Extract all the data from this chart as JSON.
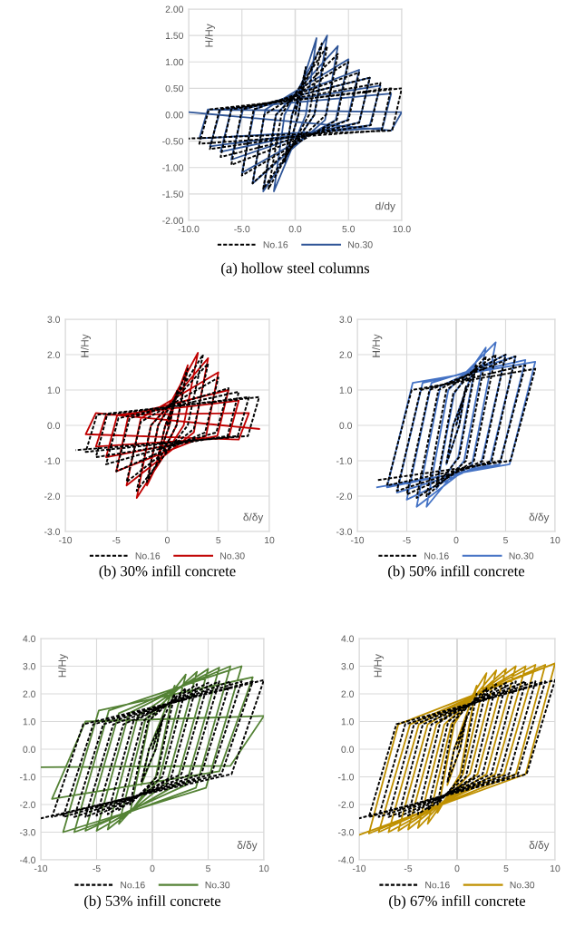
{
  "chart_data": [
    {
      "type": "line",
      "title": "(a) hollow steel columns",
      "xlabel": "d/dy",
      "ylabel": "H/Hy",
      "xlim": [
        -10,
        10
      ],
      "ylim": [
        -2,
        2
      ],
      "xticks": [
        {
          "value": -10,
          "label": "-10.0"
        },
        {
          "value": -5,
          "label": "-5.0"
        },
        {
          "value": 0,
          "label": "0.0"
        },
        {
          "value": 5,
          "label": "5.0"
        },
        {
          "value": 10,
          "label": "10.0"
        }
      ],
      "yticks": [
        {
          "value": -2,
          "label": "-2.00"
        },
        {
          "value": -1.5,
          "label": "-1.50"
        },
        {
          "value": -1,
          "label": "-1.00"
        },
        {
          "value": -0.5,
          "label": "-0.50"
        },
        {
          "value": 0,
          "label": "0.00"
        },
        {
          "value": 0.5,
          "label": "0.50"
        },
        {
          "value": 1,
          "label": "1.00"
        },
        {
          "value": 1.5,
          "label": "1.50"
        },
        {
          "value": 2,
          "label": "2.00"
        }
      ],
      "grid": true,
      "legend": "bottom",
      "marker": "none",
      "series": [
        {
          "name": "No.16",
          "color": "#000000",
          "line_style": "dashed",
          "x": [
            0,
            1,
            0.3,
            -1,
            -0.3,
            2.5,
            1.3,
            -2.5,
            -1.3,
            3,
            1.8,
            -3,
            -1.8,
            4,
            2.9,
            -4,
            -2.9,
            5,
            3.9,
            -5,
            -3.9,
            6,
            5,
            -6,
            -5,
            7,
            6,
            -7,
            -6,
            8,
            7.1,
            -8,
            -7.1,
            9,
            8.1,
            -9,
            -8.1,
            10,
            9.1,
            -10
          ],
          "values": [
            0,
            0.9,
            0,
            -0.9,
            0,
            1.35,
            0,
            -1.4,
            0,
            1.3,
            0,
            -1.4,
            0,
            1.15,
            0,
            -1.3,
            0,
            1.0,
            -0.1,
            -1.15,
            0.1,
            0.8,
            -0.1,
            -0.95,
            0.1,
            0.7,
            -0.15,
            -0.8,
            0.1,
            0.6,
            -0.2,
            -0.65,
            0.1,
            0.5,
            -0.3,
            -0.55,
            0.1,
            0.5,
            -0.3,
            -0.45
          ]
        },
        {
          "name": "No.30",
          "color": "#2f5597",
          "line_style": "solid",
          "x": [
            0,
            1,
            0.3,
            -1,
            -0.3,
            2,
            1,
            -2,
            -1,
            3,
            1.8,
            -3,
            -1.8,
            4,
            2.8,
            -4,
            -2.8,
            5,
            3.8,
            -5,
            -3.8,
            6,
            4.9,
            -6,
            -4.9,
            7,
            6,
            -7,
            -6,
            8,
            7,
            -8,
            -7,
            9,
            8.2,
            -9,
            -8.2,
            10,
            9,
            -10
          ],
          "values": [
            0,
            0.9,
            0,
            -0.9,
            0,
            1.45,
            0,
            -1.45,
            0,
            1.5,
            0,
            -1.45,
            0,
            1.3,
            -0.1,
            -1.3,
            0.1,
            1.05,
            -0.1,
            -1.1,
            0.1,
            0.85,
            -0.1,
            -0.85,
            0.1,
            0.7,
            -0.15,
            -0.7,
            0.1,
            0.55,
            -0.2,
            -0.6,
            0.1,
            0.4,
            -0.25,
            -0.45,
            0.1,
            0.05,
            -0.3,
            0.05
          ]
        }
      ]
    },
    {
      "type": "line",
      "title": "(b) 30% infill concrete",
      "xlabel": "δ/δy",
      "ylabel": "H/Hy",
      "xlim": [
        -10,
        10
      ],
      "ylim": [
        -3,
        3
      ],
      "xticks": [
        -10,
        -5,
        0,
        5,
        10
      ],
      "yticks": [
        {
          "value": -3,
          "label": "-3.0"
        },
        {
          "value": -2,
          "label": "-2.0"
        },
        {
          "value": -1,
          "label": "-1.0"
        },
        {
          "value": 0,
          "label": "0.0"
        },
        {
          "value": 1,
          "label": "1.0"
        },
        {
          "value": 2,
          "label": "2.0"
        },
        {
          "value": 3,
          "label": "3.0"
        }
      ],
      "grid": true,
      "legend": "bottom",
      "marker": "none",
      "series": [
        {
          "name": "No.16",
          "color": "#000000",
          "line_style": "dashed",
          "x": [
            0,
            1,
            0.2,
            -1,
            -0.2,
            2,
            0.9,
            -2,
            -0.9,
            3.5,
            2,
            -3,
            -1.6,
            4,
            2.6,
            -4,
            -2.6,
            5,
            3.7,
            -5,
            -3.7,
            6,
            4.8,
            -6,
            -4.8,
            7,
            5.9,
            -7,
            -5.9,
            8,
            6.9,
            -8,
            -6.9,
            9,
            7.9,
            -9
          ],
          "values": [
            0,
            1.0,
            0,
            -1.0,
            0,
            1.6,
            0,
            -1.6,
            0,
            2.0,
            0,
            -1.85,
            0,
            1.75,
            -0.1,
            -1.6,
            0.1,
            1.35,
            -0.2,
            -1.3,
            0.2,
            1.05,
            -0.2,
            -1.1,
            0.2,
            0.95,
            -0.3,
            -0.9,
            0.3,
            0.8,
            -0.3,
            -0.75,
            0.3,
            0.8,
            -0.3,
            -0.7
          ]
        },
        {
          "name": "No.30",
          "color": "#c00000",
          "line_style": "solid",
          "x": [
            0,
            1,
            0.2,
            -1,
            -0.2,
            2,
            0.9,
            -2,
            -0.9,
            3,
            1.6,
            -3,
            -1.6,
            4,
            2.6,
            -4,
            -2.6,
            5,
            3.8,
            -5,
            -3.8,
            6,
            4.9,
            -6,
            -4.9,
            7,
            6,
            -7,
            -6,
            8,
            7,
            -8,
            -7,
            9
          ],
          "values": [
            0,
            1.0,
            0,
            -1.0,
            0,
            1.7,
            0,
            -1.7,
            0,
            2.05,
            0,
            -2.05,
            0,
            1.9,
            -0.2,
            -1.7,
            0.2,
            1.5,
            -0.3,
            -1.3,
            0.3,
            1.0,
            -0.3,
            -0.9,
            0.3,
            0.7,
            -0.35,
            -0.6,
            0.3,
            0.35,
            -0.4,
            -0.25,
            0.35,
            -0.1
          ]
        }
      ]
    },
    {
      "type": "line",
      "title": "(b) 50% infill concrete",
      "xlabel": "δ/δy",
      "ylabel": "H/Hy",
      "xlim": [
        -10,
        10
      ],
      "ylim": [
        -3,
        3
      ],
      "xticks": [
        -10,
        -5,
        0,
        5,
        10
      ],
      "yticks": [
        {
          "value": -3,
          "label": "-3.0"
        },
        {
          "value": -2,
          "label": "-2.0"
        },
        {
          "value": -1,
          "label": "-1.0"
        },
        {
          "value": 0,
          "label": "0.0"
        },
        {
          "value": 1,
          "label": "1.0"
        },
        {
          "value": 2,
          "label": "2.0"
        },
        {
          "value": 3,
          "label": "3.0"
        }
      ],
      "grid": true,
      "legend": "bottom",
      "marker": "none",
      "series": [
        {
          "name": "No.16",
          "color": "#000000",
          "line_style": "dashed",
          "x": [
            0,
            1,
            0.3,
            -1,
            -0.3,
            2,
            0.3,
            -2,
            -0.3,
            3,
            1,
            -3,
            -1,
            4,
            1.8,
            -4,
            -1.8,
            5,
            2.7,
            -5,
            -2.7,
            6,
            3.6,
            -6,
            -3.6,
            7,
            4.5,
            -7,
            -4.5,
            8,
            5.5,
            -8
          ],
          "values": [
            0,
            1.1,
            0,
            -1.1,
            0,
            1.7,
            -0.9,
            -1.7,
            0.9,
            1.95,
            -1.0,
            -2.0,
            1.0,
            2.0,
            -1.0,
            -2.05,
            1.0,
            2.0,
            -1.0,
            -1.95,
            1.0,
            1.95,
            -1.0,
            -1.85,
            1.0,
            1.7,
            -1.0,
            -1.7,
            1.0,
            1.6,
            -1.0,
            -1.55
          ]
        },
        {
          "name": "No.30",
          "color": "#4472c4",
          "line_style": "solid",
          "x": [
            0,
            1,
            0.3,
            -1,
            -0.3,
            2,
            0.2,
            -2,
            -0.2,
            3,
            0.8,
            -3,
            -0.8,
            4,
            1.6,
            -4,
            -1.6,
            5,
            2.5,
            -5,
            -2.5,
            6,
            3.4,
            -6,
            -3.4,
            7,
            4.4,
            -7,
            -4.4,
            8,
            5.4,
            -8
          ],
          "values": [
            0,
            1.1,
            0,
            -1.1,
            0,
            1.8,
            -0.9,
            -1.8,
            0.9,
            2.2,
            -1.0,
            -2.3,
            1.0,
            2.35,
            -1.1,
            -2.3,
            1.1,
            2.0,
            -1.1,
            -2.1,
            1.2,
            1.95,
            -1.1,
            -1.9,
            1.2,
            1.85,
            -1.1,
            -1.75,
            1.2,
            1.8,
            -1.1,
            -1.75
          ]
        }
      ]
    },
    {
      "type": "line",
      "title": "(b) 53% infill concrete",
      "xlabel": "δ/δy",
      "ylabel": "H/Hy",
      "xlim": [
        -10,
        10
      ],
      "ylim": [
        -4,
        4
      ],
      "xticks": [
        -10,
        -5,
        0,
        5,
        10
      ],
      "yticks": [
        {
          "value": -4,
          "label": "-4.0"
        },
        {
          "value": -3,
          "label": "-3.0"
        },
        {
          "value": -2,
          "label": "-2.0"
        },
        {
          "value": -1,
          "label": "-1.0"
        },
        {
          "value": 0,
          "label": "0.0"
        },
        {
          "value": 1,
          "label": "1.0"
        },
        {
          "value": 2,
          "label": "2.0"
        },
        {
          "value": 3,
          "label": "3.0"
        },
        {
          "value": 4,
          "label": "4.0"
        }
      ],
      "grid": true,
      "legend": "bottom",
      "marker": "none",
      "series": [
        {
          "name": "No.16",
          "color": "#000000",
          "line_style": "dashed",
          "x": [
            0,
            1,
            0.3,
            -1,
            -0.3,
            2,
            0.4,
            -2,
            -0.4,
            3,
            0.9,
            -3,
            -0.9,
            4,
            1.7,
            -4,
            -1.7,
            5,
            2.6,
            -5,
            -2.6,
            6,
            3.5,
            -6,
            -3.5,
            7,
            4.4,
            -7,
            -4.4,
            8,
            5.3,
            -8,
            -5.3,
            9,
            6.2,
            -9,
            -6.2,
            10,
            7.1,
            -10
          ],
          "values": [
            0,
            1.2,
            0,
            -1.2,
            0,
            2.0,
            -1.0,
            -2.0,
            1.0,
            2.2,
            -1.0,
            -2.2,
            1.0,
            2.35,
            -1.0,
            -2.35,
            1.0,
            2.4,
            -0.9,
            -2.4,
            0.9,
            2.45,
            -0.9,
            -2.45,
            0.9,
            2.45,
            -0.9,
            -2.45,
            0.9,
            2.45,
            -0.9,
            -2.45,
            0.9,
            2.45,
            -0.9,
            -2.45,
            0.9,
            2.5,
            -0.9,
            -2.5
          ]
        },
        {
          "name": "No.30",
          "color": "#548235",
          "line_style": "solid",
          "x": [
            0,
            1,
            0.3,
            -1,
            -0.3,
            2,
            0.3,
            -2,
            -0.3,
            3,
            0.6,
            -3,
            -0.6,
            4,
            1.3,
            -4,
            -1.3,
            5,
            2.1,
            -5,
            -2.1,
            6,
            3,
            -6,
            -3,
            7,
            3.9,
            -7,
            -3.9,
            8,
            4.8,
            -8,
            -4.8,
            9,
            6,
            -9,
            -6,
            10,
            7,
            -10
          ],
          "values": [
            0,
            1.3,
            0,
            -1.3,
            0,
            2.3,
            -1.0,
            -2.3,
            1.0,
            2.7,
            -1.1,
            -2.7,
            1.1,
            2.8,
            -1.2,
            -2.9,
            1.2,
            2.9,
            -1.3,
            -2.95,
            1.3,
            2.95,
            -1.3,
            -2.95,
            1.3,
            3.0,
            -1.4,
            -3.0,
            1.4,
            3.0,
            -1.4,
            -3.0,
            1.4,
            2.6,
            -0.8,
            -1.8,
            1.0,
            1.2,
            -0.6,
            -0.65
          ]
        }
      ]
    },
    {
      "type": "line",
      "title": "(b) 67% infill concrete",
      "xlabel": "δ/δy",
      "ylabel": "H/Hy",
      "xlim": [
        -10,
        10
      ],
      "ylim": [
        -4,
        4
      ],
      "xticks": [
        -10,
        -5,
        0,
        5,
        10
      ],
      "yticks": [
        {
          "value": -4,
          "label": "-4.0"
        },
        {
          "value": -3,
          "label": "-3.0"
        },
        {
          "value": -2,
          "label": "-2.0"
        },
        {
          "value": -1,
          "label": "-1.0"
        },
        {
          "value": 0,
          "label": "0.0"
        },
        {
          "value": 1,
          "label": "1.0"
        },
        {
          "value": 2,
          "label": "2.0"
        },
        {
          "value": 3,
          "label": "3.0"
        },
        {
          "value": 4,
          "label": "4.0"
        }
      ],
      "grid": true,
      "legend": "bottom",
      "marker": "none",
      "series": [
        {
          "name": "No.16",
          "color": "#000000",
          "line_style": "dashed",
          "x": [
            0,
            1,
            0.3,
            -1,
            -0.3,
            2,
            0.4,
            -2,
            -0.4,
            3,
            0.9,
            -3,
            -0.9,
            4,
            1.7,
            -4,
            -1.7,
            5,
            2.6,
            -5,
            -2.6,
            6,
            3.5,
            -6,
            -3.5,
            7,
            4.4,
            -7,
            -4.4,
            8,
            5.3,
            -8,
            -5.3,
            9,
            6.2,
            -9,
            -6.2,
            10,
            7.1,
            -10
          ],
          "values": [
            0,
            1.2,
            0,
            -1.2,
            0,
            2.0,
            -1.0,
            -2.0,
            1.0,
            2.2,
            -1.0,
            -2.2,
            1.0,
            2.35,
            -1.0,
            -2.35,
            1.0,
            2.4,
            -0.9,
            -2.4,
            0.9,
            2.45,
            -0.9,
            -2.45,
            0.9,
            2.45,
            -0.9,
            -2.45,
            0.9,
            2.45,
            -0.9,
            -2.45,
            0.9,
            2.45,
            -0.9,
            -2.45,
            0.9,
            2.5,
            -0.9,
            -2.5
          ]
        },
        {
          "name": "No.30",
          "color": "#bf9000",
          "line_style": "solid",
          "x": [
            0,
            1,
            0.3,
            -1,
            -0.3,
            2,
            0.3,
            -2,
            -0.3,
            3,
            0.6,
            -3,
            -0.6,
            4,
            1.3,
            -4,
            -1.3,
            5,
            2.1,
            -5,
            -2.1,
            6,
            3,
            -6,
            -3,
            7,
            3.9,
            -7,
            -3.9,
            8,
            4.8,
            -8,
            -4.8,
            9,
            6,
            -9,
            -6,
            10,
            7,
            -10
          ],
          "values": [
            0,
            1.3,
            0,
            -1.3,
            0,
            2.3,
            -0.9,
            -2.3,
            0.9,
            2.75,
            -0.9,
            -2.7,
            0.9,
            2.85,
            -0.9,
            -2.85,
            0.9,
            2.9,
            -0.9,
            -2.9,
            0.9,
            3.0,
            -0.9,
            -2.95,
            0.9,
            3.0,
            -0.9,
            -3.0,
            0.9,
            3.05,
            -0.9,
            -3.0,
            0.9,
            3.05,
            -0.9,
            -3.05,
            0.9,
            3.1,
            -0.9,
            -3.1
          ]
        }
      ]
    }
  ]
}
